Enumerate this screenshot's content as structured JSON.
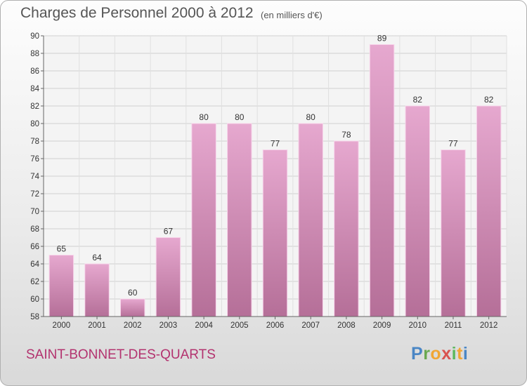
{
  "header": {
    "title": "Charges de Personnel 2000 à 2012",
    "units": "(en milliers d'€)"
  },
  "footer": {
    "commune": "SAINT-BONNET-DES-QUARTS",
    "logo_letters": [
      "P",
      "r",
      "o",
      "x",
      "i",
      "t",
      "i"
    ]
  },
  "colors": {
    "bar_top": "#e6a8cf",
    "bar_bottom": "#b56f98",
    "commune_text": "#b3336f"
  },
  "chart_data": {
    "type": "bar",
    "title": "Charges de Personnel 2000 à 2012",
    "subtitle": "(en milliers d'€)",
    "categories": [
      "2000",
      "2001",
      "2002",
      "2003",
      "2004",
      "2005",
      "2006",
      "2007",
      "2008",
      "2009",
      "2010",
      "2011",
      "2012"
    ],
    "values": [
      65,
      64,
      60,
      67,
      80,
      80,
      77,
      80,
      78,
      89,
      82,
      77,
      82
    ],
    "ylim": [
      58,
      90
    ],
    "yticks": [
      58,
      60,
      62,
      64,
      66,
      68,
      70,
      72,
      74,
      76,
      78,
      80,
      82,
      84,
      86,
      88,
      90
    ],
    "grid": true,
    "data_labels": true,
    "xlabel": "",
    "ylabel": ""
  }
}
